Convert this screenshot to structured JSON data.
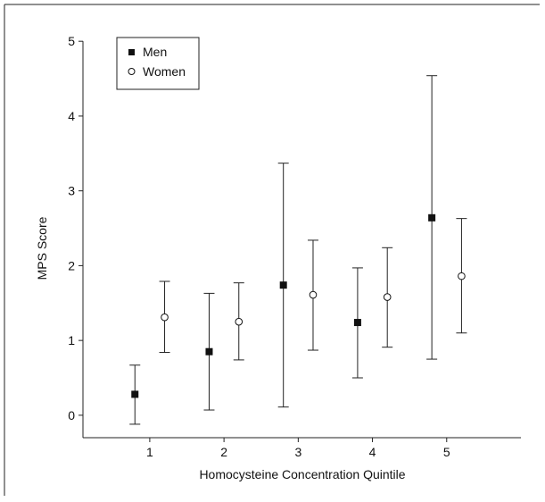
{
  "chart_data": {
    "type": "scatter",
    "title": "",
    "xlabel": "Homocysteine Concentration Quintile",
    "ylabel": "MPS Score",
    "xlim": [
      0.1,
      6.0
    ],
    "ylim": [
      -0.3,
      5.05
    ],
    "x_ticks": [
      "1",
      "2",
      "3",
      "4",
      "5"
    ],
    "y_ticks": [
      "0",
      "1",
      "2",
      "3",
      "4",
      "5"
    ],
    "grid": false,
    "legend_position": "top-left",
    "series": [
      {
        "name": "Men",
        "marker": "filled-square",
        "color": "#111111",
        "points": [
          {
            "x": 1,
            "y": 0.28,
            "low": -0.12,
            "high": 0.67
          },
          {
            "x": 2,
            "y": 0.85,
            "low": 0.07,
            "high": 1.63
          },
          {
            "x": 3,
            "y": 1.74,
            "low": 0.11,
            "high": 3.37
          },
          {
            "x": 4,
            "y": 1.24,
            "low": 0.5,
            "high": 1.97
          },
          {
            "x": 5,
            "y": 2.64,
            "low": 0.75,
            "high": 4.54
          }
        ]
      },
      {
        "name": "Women",
        "marker": "open-circle",
        "color": "#111111",
        "points": [
          {
            "x": 1,
            "y": 1.31,
            "low": 0.84,
            "high": 1.79
          },
          {
            "x": 2,
            "y": 1.25,
            "low": 0.74,
            "high": 1.77
          },
          {
            "x": 3,
            "y": 1.61,
            "low": 0.87,
            "high": 2.34
          },
          {
            "x": 4,
            "y": 1.58,
            "low": 0.91,
            "high": 2.24
          },
          {
            "x": 5,
            "y": 1.86,
            "low": 1.1,
            "high": 2.63
          }
        ]
      }
    ]
  }
}
